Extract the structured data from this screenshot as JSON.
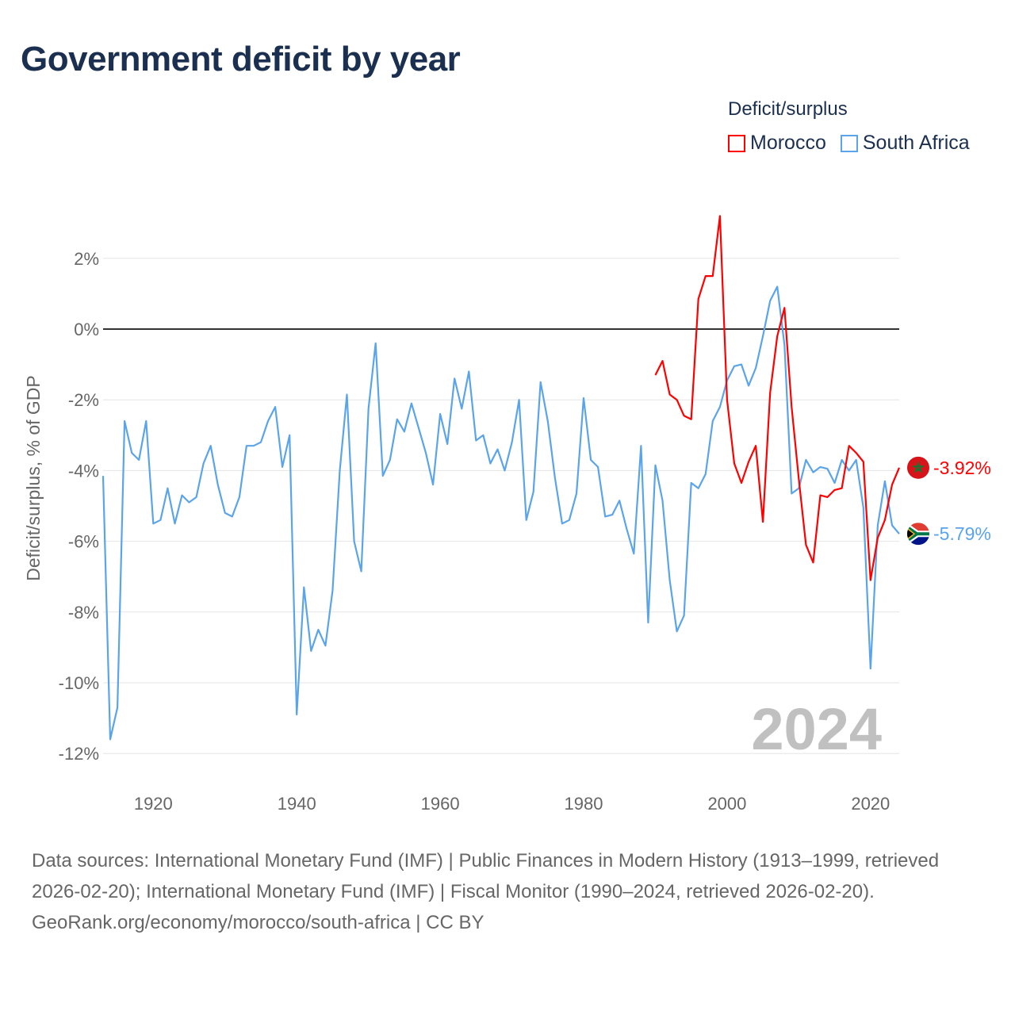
{
  "title": "Government deficit by year",
  "legend": {
    "title": "Deficit/surplus",
    "items": [
      {
        "label": "Morocco",
        "color": "#ff0000"
      },
      {
        "label": "South Africa",
        "color": "#5ba4ea"
      }
    ]
  },
  "watermark_year": "2024",
  "footer": {
    "sources": "Data sources: International Monetary Fund (IMF) | Public Finances in Modern History (1913–1999, retrieved 2026-02-20); International Monetary Fund (IMF) | Fiscal Monitor (1990–2024, retrieved 2026-02-20).",
    "credit": "GeoRank.org/economy/morocco/south-africa | CC BY"
  },
  "chart_data": {
    "type": "line",
    "title": "Government deficit by year",
    "xlabel": "",
    "ylabel": "Deficit/surplus, % of GDP",
    "xlim": [
      1913,
      2024
    ],
    "ylim": [
      -12.8,
      3.3
    ],
    "yticks": [
      2,
      0,
      -2,
      -4,
      -6,
      -8,
      -10,
      -12
    ],
    "ytick_labels": [
      "2%",
      "0%",
      "-2%",
      "-4%",
      "-6%",
      "-8%",
      "-10%",
      "-12%"
    ],
    "xticks": [
      1920,
      1940,
      1960,
      1980,
      2000,
      2020
    ],
    "xtick_labels": [
      "1920",
      "1940",
      "1960",
      "1980",
      "2000",
      "2020"
    ],
    "grid": true,
    "legend_position": "top-right",
    "series": [
      {
        "name": "South Africa",
        "color": "#5ba4ea",
        "start_year": 1913,
        "end_label": "-5.79%",
        "values": [
          -4.15,
          -11.6,
          -10.7,
          -2.6,
          -3.5,
          -3.7,
          -2.6,
          -5.5,
          -5.4,
          -4.5,
          -5.5,
          -4.7,
          -4.9,
          -4.75,
          -3.8,
          -3.3,
          -4.4,
          -5.2,
          -5.3,
          -4.75,
          -3.3,
          -3.3,
          -3.2,
          -2.6,
          -2.2,
          -3.9,
          -3.0,
          -10.9,
          -7.3,
          -9.1,
          -8.5,
          -8.95,
          -7.4,
          -4.0,
          -1.85,
          -6.0,
          -6.85,
          -2.25,
          -0.4,
          -4.15,
          -3.7,
          -2.55,
          -2.9,
          -2.1,
          -2.8,
          -3.5,
          -4.4,
          -2.4,
          -3.25,
          -1.4,
          -2.25,
          -1.2,
          -3.15,
          -3.0,
          -3.8,
          -3.4,
          -4.0,
          -3.2,
          -2.0,
          -5.4,
          -4.6,
          -1.5,
          -2.6,
          -4.2,
          -5.5,
          -5.4,
          -4.65,
          -1.95,
          -3.7,
          -3.9,
          -5.3,
          -5.25,
          -4.85,
          -5.65,
          -6.35,
          -3.3,
          -8.3,
          -3.85,
          -4.85,
          -7.1,
          -8.55,
          -8.1,
          -4.35,
          -4.5,
          -4.1,
          -2.6,
          -2.2,
          -1.45,
          -1.05,
          -1.0,
          -1.6,
          -1.1,
          -0.2,
          0.8,
          1.2,
          -0.45,
          -4.65,
          -4.5,
          -3.7,
          -4.05,
          -3.9,
          -3.95,
          -4.35,
          -3.7,
          -4.0,
          -3.7,
          -5.05,
          -9.6,
          -5.55,
          -4.3,
          -5.55,
          -5.79
        ]
      },
      {
        "name": "Morocco",
        "color": "#ff0000",
        "start_year": 1990,
        "end_label": "-3.92%",
        "values": [
          -1.3,
          -0.9,
          -1.85,
          -2.0,
          -2.45,
          -2.55,
          0.85,
          1.5,
          1.5,
          3.2,
          -2.0,
          -3.8,
          -4.35,
          -3.75,
          -3.3,
          -5.45,
          -1.8,
          -0.2,
          0.6,
          -2.2,
          -4.25,
          -6.1,
          -6.6,
          -4.7,
          -4.75,
          -4.55,
          -4.5,
          -3.3,
          -3.5,
          -3.75,
          -7.1,
          -5.9,
          -5.4,
          -4.4,
          -3.92
        ]
      }
    ]
  }
}
